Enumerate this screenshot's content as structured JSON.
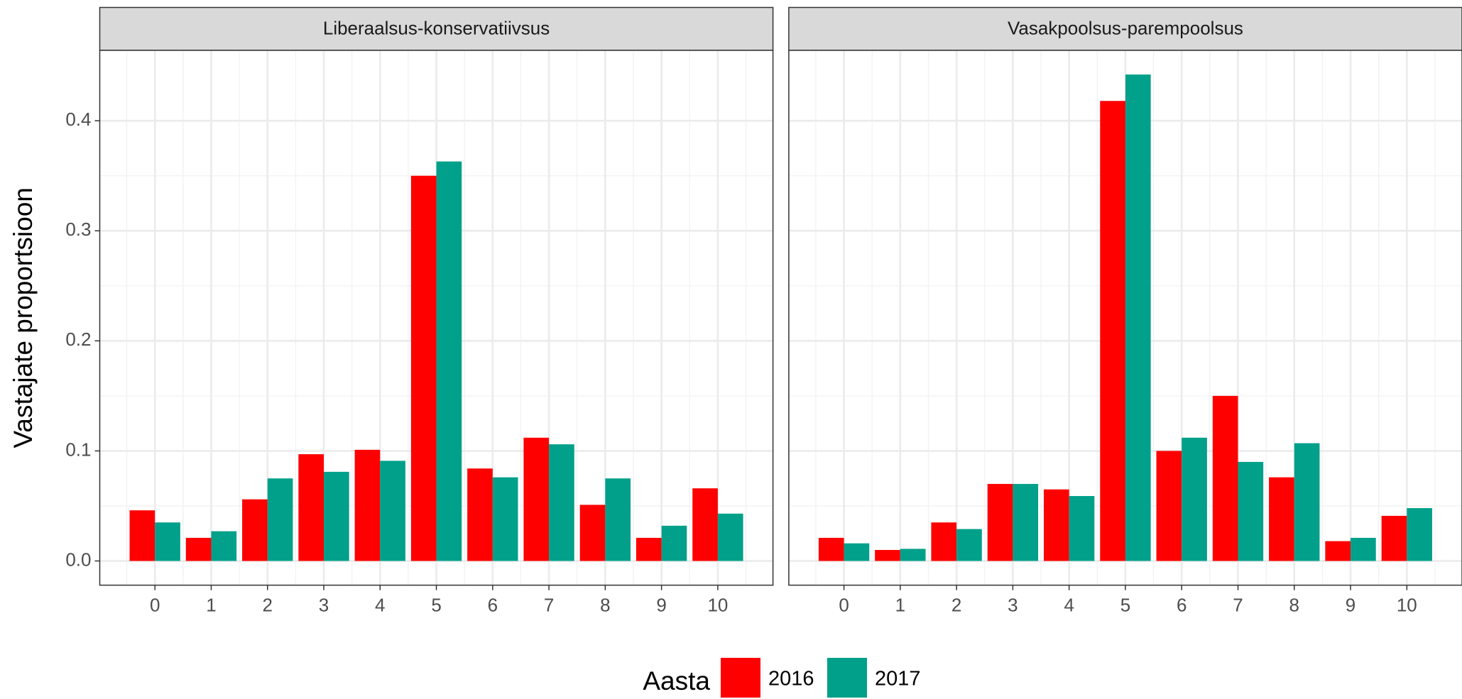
{
  "chart_data": [
    {
      "type": "bar",
      "title": "Liberaalsus-konservatiivsus",
      "categories": [
        "0",
        "1",
        "2",
        "3",
        "4",
        "5",
        "6",
        "7",
        "8",
        "9",
        "10"
      ],
      "series": [
        {
          "name": "2016",
          "color": "#ff0000",
          "values": [
            0.046,
            0.021,
            0.056,
            0.097,
            0.101,
            0.35,
            0.084,
            0.112,
            0.051,
            0.021,
            0.066
          ]
        },
        {
          "name": "2017",
          "color": "#00a08a",
          "values": [
            0.035,
            0.027,
            0.075,
            0.081,
            0.091,
            0.363,
            0.076,
            0.106,
            0.075,
            0.032,
            0.043
          ]
        }
      ],
      "ylabel": "Vastajate proportsioon",
      "ylim": [
        -0.022,
        0.464
      ],
      "yticks": [
        {
          "value": 0,
          "label": "0.0"
        },
        0.1,
        0.2,
        0.3,
        0.4
      ],
      "grid": true
    },
    {
      "type": "bar",
      "title": "Vasakpoolsus-parempoolsus",
      "categories": [
        "0",
        "1",
        "2",
        "3",
        "4",
        "5",
        "6",
        "7",
        "8",
        "9",
        "10"
      ],
      "series": [
        {
          "name": "2016",
          "color": "#ff0000",
          "values": [
            0.021,
            0.01,
            0.035,
            0.07,
            0.065,
            0.418,
            0.1,
            0.15,
            0.076,
            0.018,
            0.041
          ]
        },
        {
          "name": "2017",
          "color": "#00a08a",
          "values": [
            0.016,
            0.011,
            0.029,
            0.07,
            0.059,
            0.442,
            0.112,
            0.09,
            0.107,
            0.021,
            0.048
          ]
        }
      ],
      "ylim": [
        -0.022,
        0.464
      ],
      "yticks": [
        0,
        0.1,
        0.2,
        0.3,
        0.4
      ],
      "grid": true
    }
  ],
  "legend": {
    "title": "Aasta"
  }
}
